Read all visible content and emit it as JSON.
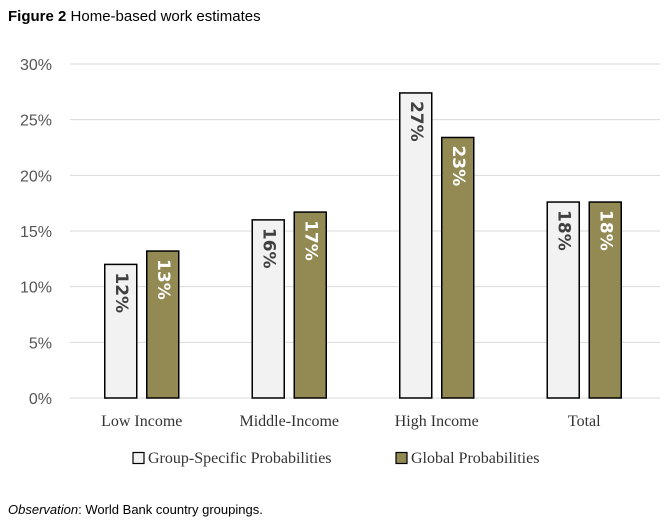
{
  "figure": {
    "label": "Figure 2",
    "title": "Home-based work estimates"
  },
  "note": {
    "label": "Observation",
    "text": ": World Bank country groupings."
  },
  "colors": {
    "series1_fill": "#f2f2f2",
    "series2_fill": "#938953",
    "grid": "#d9d9d9",
    "label_dark": "#404040",
    "label_light": "#ffffff"
  },
  "chart_data": {
    "type": "bar",
    "categories": [
      "Low Income",
      "Middle-Income",
      "High Income",
      "Total"
    ],
    "series": [
      {
        "name": "Group-Specific Probabilities",
        "values": [
          12,
          16,
          27.4,
          17.6
        ],
        "labels": [
          "12%",
          "16%",
          "27%",
          "18%"
        ]
      },
      {
        "name": "Global Probabilities",
        "values": [
          13.2,
          16.7,
          23.4,
          17.6
        ],
        "labels": [
          "13%",
          "17%",
          "23%",
          "18%"
        ]
      }
    ],
    "yticks": [
      "0%",
      "5%",
      "10%",
      "15%",
      "20%",
      "25%",
      "30%"
    ],
    "ylim": [
      0,
      30
    ],
    "grid": true,
    "legend_position": "bottom"
  }
}
